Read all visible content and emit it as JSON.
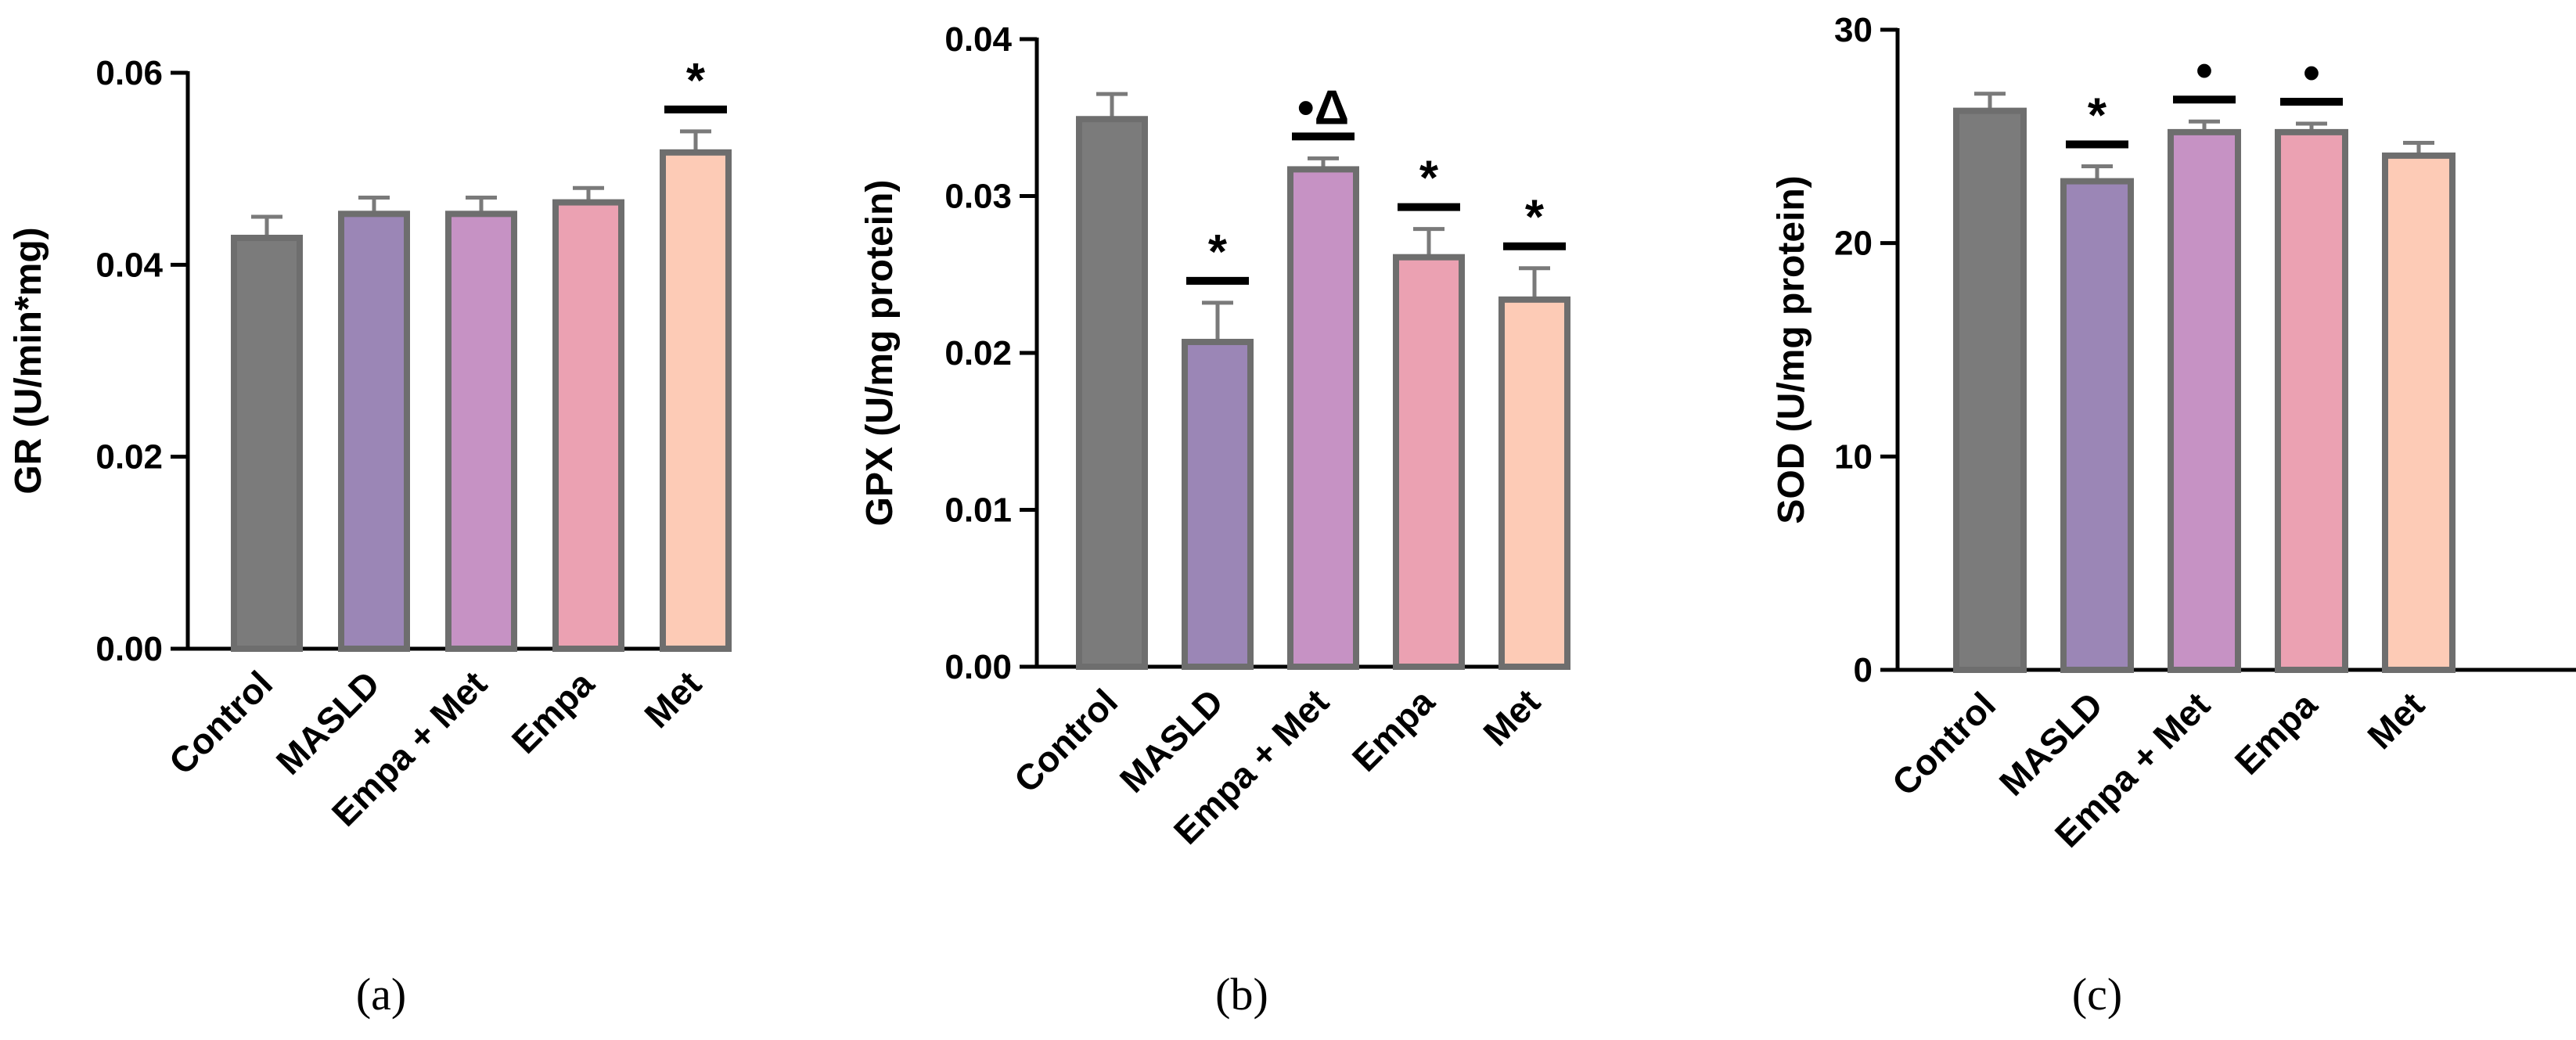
{
  "chart_data": [
    {
      "type": "bar",
      "panel_label": "(a)",
      "ylabel": "GR (U/min*mg)",
      "ylim": [
        0,
        0.06
      ],
      "yticks": [
        "0.00",
        "0.02",
        "0.04",
        "0.06"
      ],
      "categories": [
        "Control",
        "MASLD",
        "Empa + Met",
        "Empa",
        "Met"
      ],
      "values": [
        0.0428,
        0.0453,
        0.0453,
        0.0465,
        0.0517
      ],
      "errors": [
        0.0022,
        0.0017,
        0.0017,
        0.0015,
        0.0022
      ],
      "significance": [
        "",
        "",
        "",
        "",
        "*"
      ],
      "colors": [
        "#7b7b7b",
        "#9b86b6",
        "#c692c4",
        "#eba1b2",
        "#fdcbb6"
      ]
    },
    {
      "type": "bar",
      "panel_label": "(b)",
      "ylabel": "GPX (U/mg protein)",
      "ylim": [
        0,
        0.04
      ],
      "yticks": [
        "0.00",
        "0.01",
        "0.02",
        "0.03",
        "0.04"
      ],
      "categories": [
        "Control",
        "MASLD",
        "Empa + Met",
        "Empa",
        "Met"
      ],
      "values": [
        0.0349,
        0.0207,
        0.0317,
        0.0261,
        0.0234
      ],
      "errors": [
        0.0016,
        0.0025,
        0.0007,
        0.0018,
        0.002
      ],
      "significance": [
        "",
        "*",
        "•Δ",
        "*",
        "*"
      ],
      "colors": [
        "#7b7b7b",
        "#9b86b6",
        "#c692c4",
        "#eba1b2",
        "#fdcbb6"
      ]
    },
    {
      "type": "bar",
      "panel_label": "(c)",
      "ylabel": "SOD (U/mg protein)",
      "ylim": [
        0,
        30
      ],
      "yticks": [
        "0",
        "10",
        "20",
        "30"
      ],
      "categories": [
        "Control",
        "MASLD",
        "Empa + Met",
        "Empa",
        "Met"
      ],
      "values": [
        26.2,
        22.9,
        25.2,
        25.2,
        24.1
      ],
      "errors": [
        0.8,
        0.7,
        0.5,
        0.4,
        0.6
      ],
      "significance": [
        "",
        "*",
        "•",
        "•",
        ""
      ],
      "colors": [
        "#7b7b7b",
        "#9b86b6",
        "#c692c4",
        "#eba1b2",
        "#fdcbb6"
      ]
    }
  ]
}
